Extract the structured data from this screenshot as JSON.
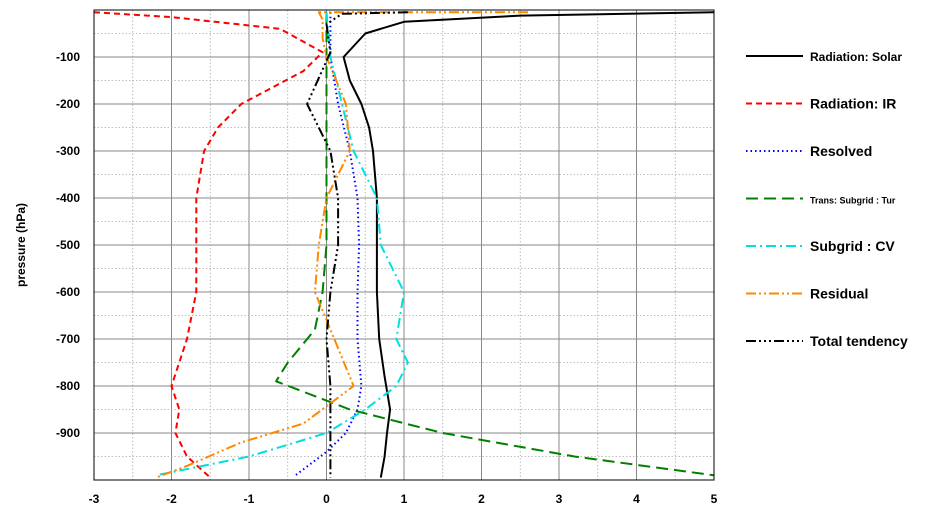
{
  "chart_data": {
    "type": "line",
    "title": "",
    "xlabel": "",
    "ylabel": "pressure (hPa)",
    "xlim": [
      -3,
      5
    ],
    "ylim": [
      -1000,
      0
    ],
    "x_ticks": [
      -3,
      -2,
      -1,
      0,
      1,
      2,
      3,
      4,
      5
    ],
    "y_ticks": [
      -100,
      -200,
      -300,
      -400,
      -500,
      -600,
      -700,
      -800,
      -900
    ],
    "grid": true,
    "legend_position": "right",
    "series": [
      {
        "name": "Radiation: Solar",
        "color": "#000000",
        "dash": "solid",
        "points": [
          [
            5,
            -5
          ],
          [
            2.5,
            -12
          ],
          [
            1,
            -25
          ],
          [
            0.5,
            -50
          ],
          [
            0.22,
            -100
          ],
          [
            0.3,
            -150
          ],
          [
            0.45,
            -200
          ],
          [
            0.55,
            -250
          ],
          [
            0.6,
            -300
          ],
          [
            0.65,
            -400
          ],
          [
            0.65,
            -500
          ],
          [
            0.65,
            -600
          ],
          [
            0.68,
            -700
          ],
          [
            0.75,
            -780
          ],
          [
            0.82,
            -850
          ],
          [
            0.78,
            -900
          ],
          [
            0.75,
            -950
          ],
          [
            0.7,
            -995
          ]
        ]
      },
      {
        "name": "Radiation: IR",
        "color": "#ff0000",
        "dash": "6,4",
        "points": [
          [
            -3,
            -5
          ],
          [
            -2,
            -15
          ],
          [
            -0.6,
            -40
          ],
          [
            -0.05,
            -90
          ],
          [
            -0.3,
            -130
          ],
          [
            -1.1,
            -200
          ],
          [
            -1.4,
            -250
          ],
          [
            -1.58,
            -300
          ],
          [
            -1.68,
            -400
          ],
          [
            -1.68,
            -500
          ],
          [
            -1.68,
            -600
          ],
          [
            -1.8,
            -700
          ],
          [
            -2.0,
            -800
          ],
          [
            -1.9,
            -850
          ],
          [
            -1.95,
            -900
          ],
          [
            -1.8,
            -950
          ],
          [
            -1.5,
            -995
          ]
        ]
      },
      {
        "name": "Resolved",
        "color": "#0000ff",
        "dash": "1.5,3",
        "points": [
          [
            0.05,
            -5
          ],
          [
            0.05,
            -100
          ],
          [
            0.15,
            -200
          ],
          [
            0.3,
            -300
          ],
          [
            0.4,
            -400
          ],
          [
            0.42,
            -500
          ],
          [
            0.4,
            -600
          ],
          [
            0.4,
            -700
          ],
          [
            0.45,
            -800
          ],
          [
            0.4,
            -850
          ],
          [
            0.25,
            -900
          ],
          [
            0.0,
            -940
          ],
          [
            -0.4,
            -990
          ]
        ]
      },
      {
        "name": "Trans: Subgrid : Tur",
        "color": "#008000",
        "dash": "12,6",
        "points": [
          [
            0.0,
            -5
          ],
          [
            0.0,
            -50
          ],
          [
            0.0,
            -200
          ],
          [
            0.0,
            -500
          ],
          [
            -0.05,
            -600
          ],
          [
            -0.15,
            -680
          ],
          [
            -0.5,
            -750
          ],
          [
            -0.65,
            -790
          ],
          [
            0.3,
            -850
          ],
          [
            1.5,
            -900
          ],
          [
            3.2,
            -950
          ],
          [
            5,
            -990
          ]
        ]
      },
      {
        "name": "Subgrid : CV",
        "color": "#00e0e0",
        "dash": "10,4,2,4",
        "points": [
          [
            0.0,
            -5
          ],
          [
            0.05,
            -100
          ],
          [
            0.2,
            -200
          ],
          [
            0.35,
            -300
          ],
          [
            0.65,
            -400
          ],
          [
            0.7,
            -500
          ],
          [
            1.0,
            -600
          ],
          [
            0.9,
            -700
          ],
          [
            1.05,
            -750
          ],
          [
            0.9,
            -800
          ],
          [
            0.5,
            -850
          ],
          [
            0.0,
            -900
          ],
          [
            -1.0,
            -950
          ],
          [
            -2.2,
            -990
          ]
        ]
      },
      {
        "name": "Residual",
        "color": "#ff8800",
        "dash": "10,3,2,3,2,3",
        "points": [
          [
            2.6,
            -5
          ],
          [
            -0.1,
            -5
          ],
          [
            -0.05,
            -20
          ],
          [
            -0.05,
            -60
          ],
          [
            0.0,
            -100
          ],
          [
            0.25,
            -200
          ],
          [
            0.3,
            -300
          ],
          [
            0.0,
            -400
          ],
          [
            -0.1,
            -500
          ],
          [
            -0.15,
            -600
          ],
          [
            0.1,
            -700
          ],
          [
            0.35,
            -800
          ],
          [
            -0.3,
            -880
          ],
          [
            -1.1,
            -920
          ],
          [
            -1.8,
            -970
          ],
          [
            -2.2,
            -995
          ]
        ]
      },
      {
        "name": "Total tendency",
        "color": "#000000",
        "dash": "10,3,2,3,2,3,2,3",
        "points": [
          [
            1.05,
            -5
          ],
          [
            0.2,
            -8
          ],
          [
            0.0,
            -30
          ],
          [
            0.05,
            -90
          ],
          [
            -0.25,
            -200
          ],
          [
            0.05,
            -300
          ],
          [
            0.15,
            -400
          ],
          [
            0.15,
            -500
          ],
          [
            0.05,
            -600
          ],
          [
            0.0,
            -700
          ],
          [
            0.05,
            -800
          ],
          [
            0.05,
            -900
          ],
          [
            0.05,
            -995
          ]
        ]
      }
    ]
  }
}
